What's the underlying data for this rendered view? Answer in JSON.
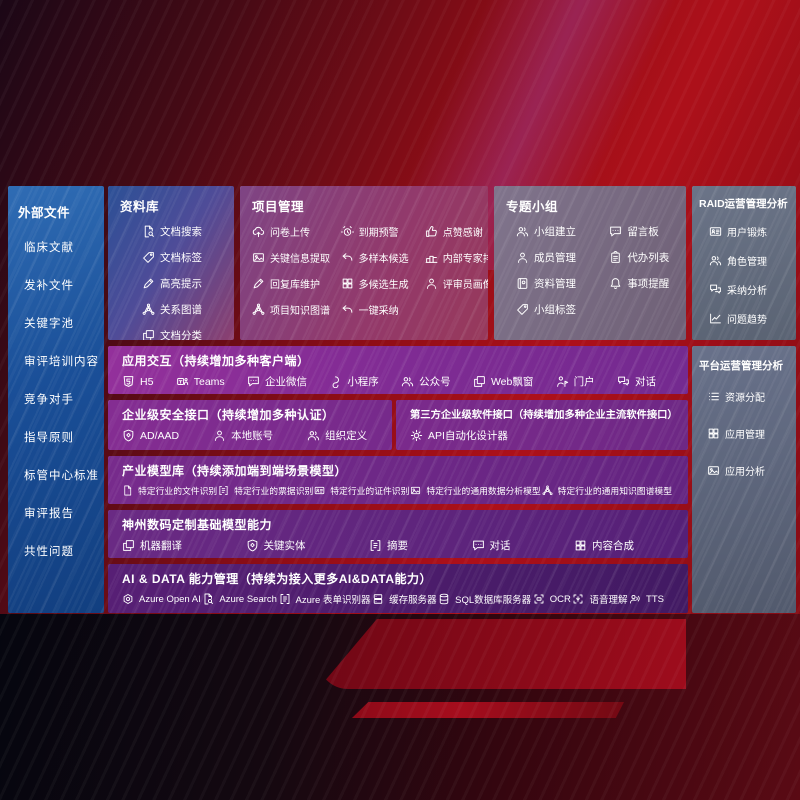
{
  "palette": {
    "background_red": "#a50d16",
    "panel_blue": "#1b4f98",
    "row_purple": "#7b2b92",
    "box_gray": "#5f6878",
    "box_magenta": "#93396a",
    "text": "#ffffff"
  },
  "left_panel": {
    "title": "外部文件",
    "items": [
      "临床文献",
      "发补文件",
      "关键字池",
      "审评培训内容",
      "竞争对手",
      "指导原则",
      "标管中心标准",
      "审评报告",
      "共性问题"
    ]
  },
  "boxes": {
    "library": {
      "title": "资料库",
      "items": [
        {
          "icon": "docsearch",
          "label": "文档搜索"
        },
        {
          "icon": "tag",
          "label": "文档标签"
        },
        {
          "icon": "pencil",
          "label": "高亮提示"
        },
        {
          "icon": "net",
          "label": "关系图谱"
        },
        {
          "icon": "copy",
          "label": "文档分类"
        }
      ]
    },
    "project": {
      "title": "项目管理",
      "col1": [
        {
          "icon": "cloudup",
          "label": "问卷上传"
        },
        {
          "icon": "img",
          "label": "关键信息提取"
        },
        {
          "icon": "pencil",
          "label": "回复库维护"
        },
        {
          "icon": "net",
          "label": "项目知识图谱"
        }
      ],
      "col2": [
        {
          "icon": "alarm",
          "label": "到期预警"
        },
        {
          "icon": "reply",
          "label": "多样本候选"
        },
        {
          "icon": "grid4",
          "label": "多候选生成"
        },
        {
          "icon": "reply",
          "label": "一键采纳"
        }
      ],
      "col3": [
        {
          "icon": "thumb",
          "label": "点赞感谢"
        },
        {
          "icon": "rank",
          "label": "内部专家排名"
        },
        {
          "icon": "person",
          "label": "评审员画像"
        }
      ]
    },
    "group": {
      "title": "专题小组",
      "col1": [
        {
          "icon": "people",
          "label": "小组建立"
        },
        {
          "icon": "person",
          "label": "成员管理"
        },
        {
          "icon": "album",
          "label": "资料管理"
        },
        {
          "icon": "tag",
          "label": "小组标签"
        }
      ],
      "col2": [
        {
          "icon": "chat",
          "label": "留言板"
        },
        {
          "icon": "clipboard",
          "label": "代办列表"
        },
        {
          "icon": "bell",
          "label": "事项提醒"
        }
      ]
    },
    "raid": {
      "title": "RAID运营管理分析",
      "items": [
        {
          "icon": "idcard",
          "label": "用户锻炼"
        },
        {
          "icon": "people",
          "label": "角色管理"
        },
        {
          "icon": "chatqa",
          "label": "采纳分析"
        },
        {
          "icon": "chart",
          "label": "问题趋势"
        }
      ]
    },
    "platform": {
      "title": "平台运营管理分析",
      "items": [
        {
          "icon": "list",
          "label": "资源分配"
        },
        {
          "icon": "grid4",
          "label": "应用管理"
        },
        {
          "icon": "img",
          "label": "应用分析"
        }
      ]
    }
  },
  "rows": {
    "interaction": {
      "title": "应用交互（持续增加多种客户端）",
      "items": [
        {
          "icon": "h5",
          "label": "H5"
        },
        {
          "icon": "teams",
          "label": "Teams"
        },
        {
          "icon": "chat",
          "label": "企业微信"
        },
        {
          "icon": "link",
          "label": "小程序"
        },
        {
          "icon": "people",
          "label": "公众号"
        },
        {
          "icon": "copy",
          "label": "Web飘窗"
        },
        {
          "icon": "portal",
          "label": "门户"
        },
        {
          "icon": "chatqa",
          "label": "对话"
        }
      ]
    },
    "security": {
      "title": "企业级安全接口（持续增加多种认证）",
      "items": [
        {
          "icon": "shield",
          "label": "AD/AAD"
        },
        {
          "icon": "person",
          "label": "本地账号"
        },
        {
          "icon": "people",
          "label": "组织定义"
        }
      ]
    },
    "thirdparty": {
      "title": "第三方企业级软件接口（持续增加多种企业主流软件接口）",
      "items": [
        {
          "icon": "gear",
          "label": "API自动化设计器"
        }
      ]
    },
    "industry": {
      "title": "产业模型库（持续添加端到端场景模型）",
      "items": [
        {
          "icon": "doc",
          "label": "特定行业的文件识别"
        },
        {
          "icon": "form",
          "label": "特定行业的票据识别"
        },
        {
          "icon": "idcard",
          "label": "特定行业的证件识别"
        },
        {
          "icon": "img",
          "label": "特定行业的通用数据分析模型"
        },
        {
          "icon": "net",
          "label": "特定行业的通用知识图谱模型"
        }
      ]
    },
    "base": {
      "title": "神州数码定制基础模型能力",
      "items": [
        {
          "icon": "copy",
          "label": "机器翻译"
        },
        {
          "icon": "shield",
          "label": "关键实体"
        },
        {
          "icon": "form",
          "label": "摘要"
        },
        {
          "icon": "chat",
          "label": "对话"
        },
        {
          "icon": "grid4",
          "label": "内容合成"
        }
      ]
    },
    "aidata": {
      "title": "AI & DATA 能力管理（持续为接入更多AI&DATA能力）",
      "items": [
        {
          "icon": "openai",
          "label": "Azure Open AI"
        },
        {
          "icon": "docsearch",
          "label": "Azure Search"
        },
        {
          "icon": "form",
          "label": "Azure 表单识别器"
        },
        {
          "icon": "server",
          "label": "缓存服务器"
        },
        {
          "icon": "db",
          "label": "SQL数据库服务器"
        },
        {
          "icon": "ocr",
          "label": "OCR"
        },
        {
          "icon": "mic",
          "label": "语音理解"
        },
        {
          "icon": "tts",
          "label": "TTS"
        }
      ]
    }
  }
}
